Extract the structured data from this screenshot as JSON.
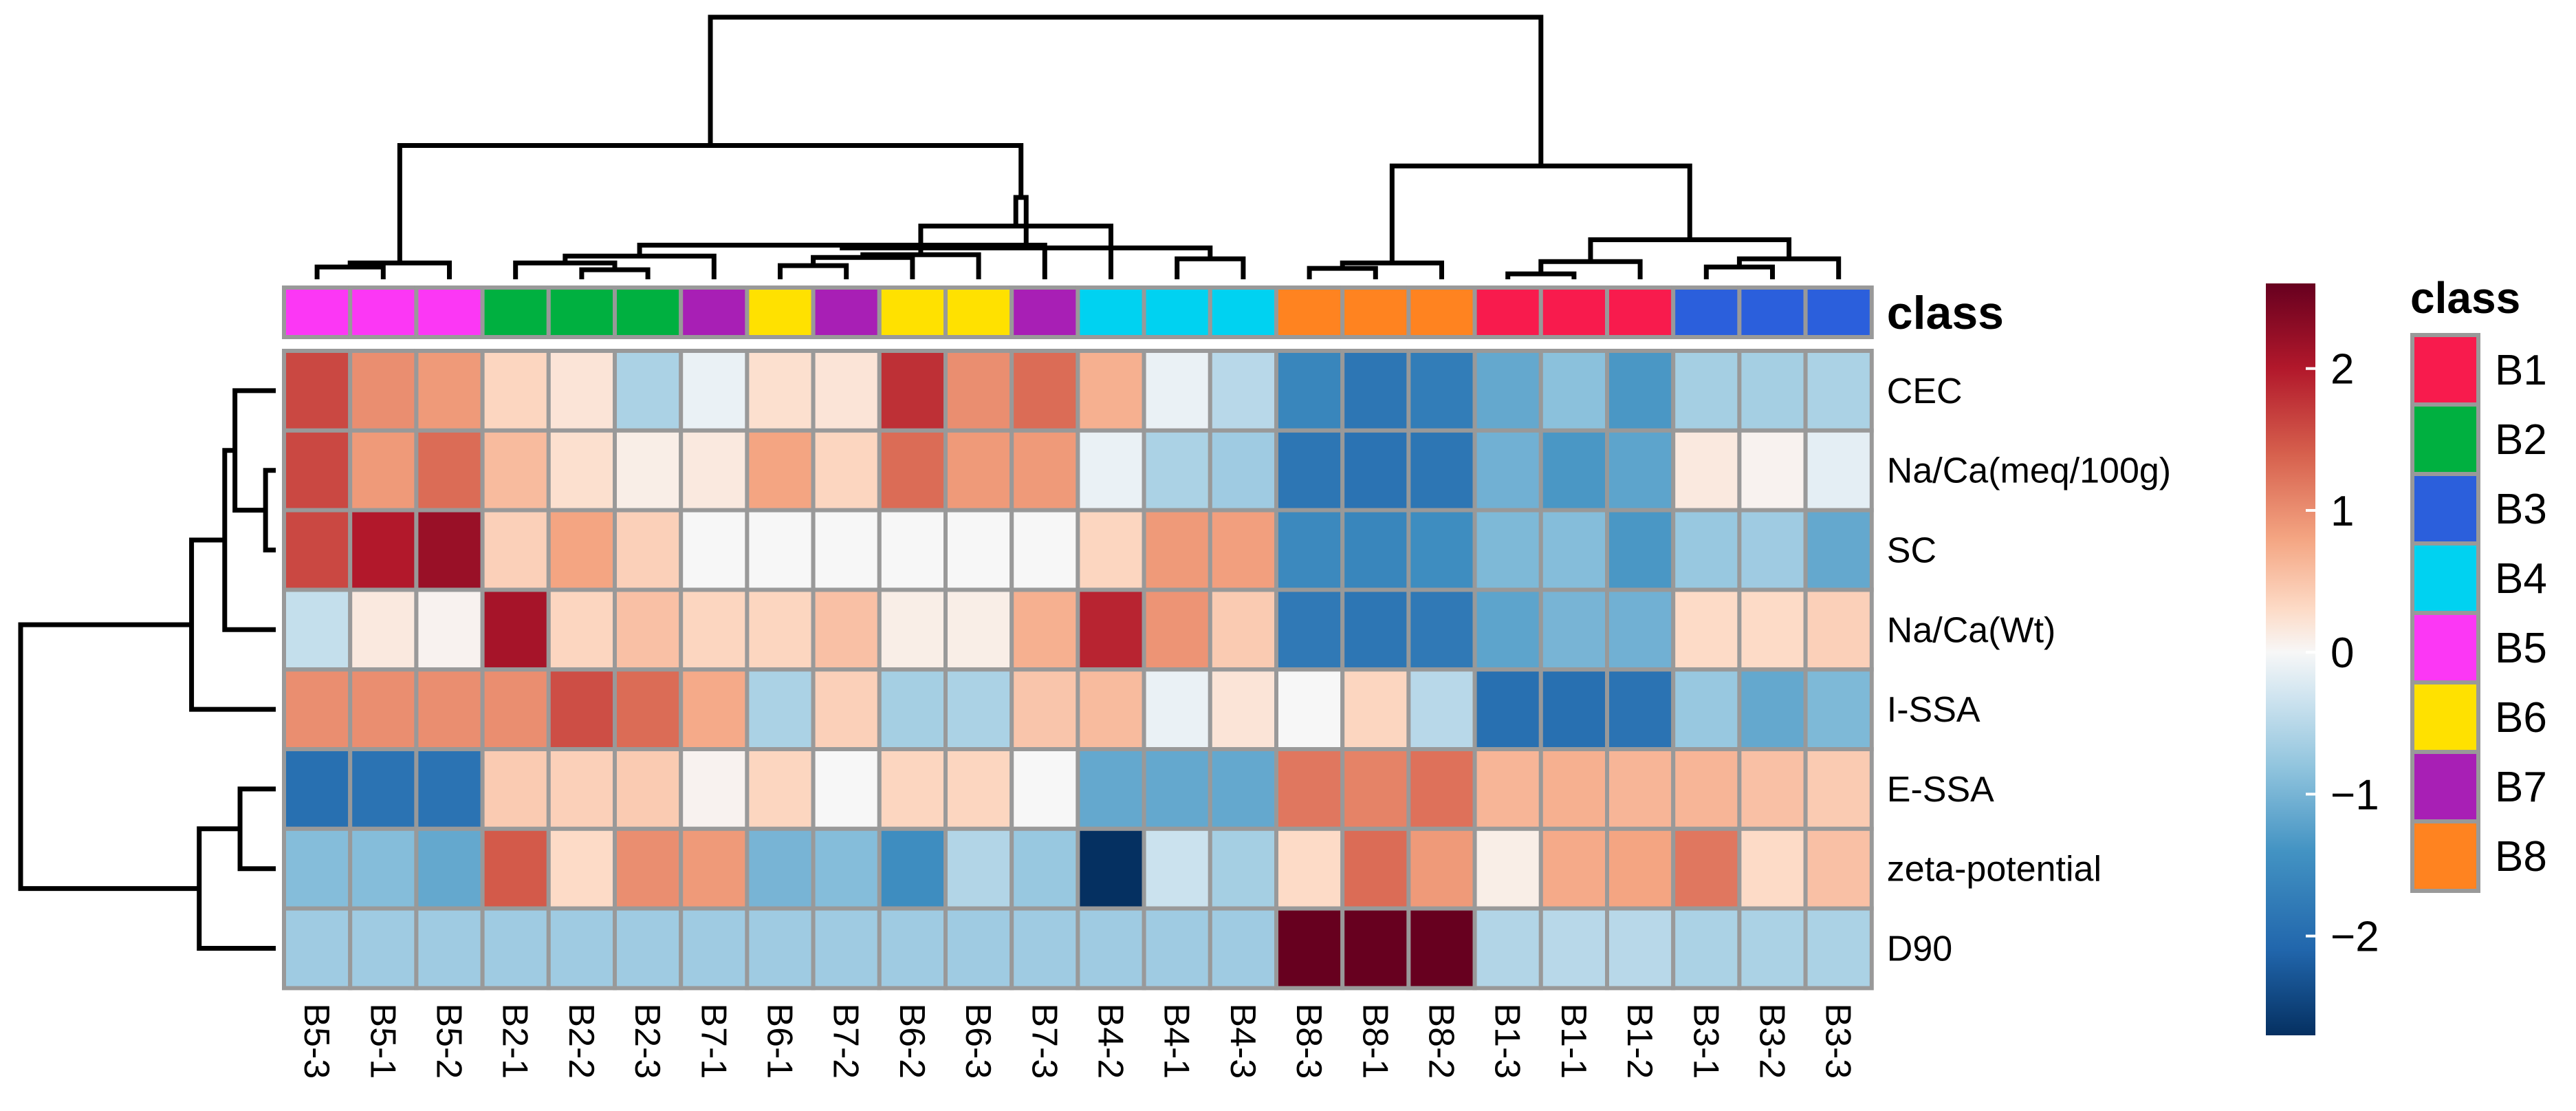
{
  "chart_data": {
    "type": "heatmap",
    "title": "",
    "columns": [
      "B5-3",
      "B5-1",
      "B5-2",
      "B2-1",
      "B2-2",
      "B2-3",
      "B7-1",
      "B6-1",
      "B7-2",
      "B6-2",
      "B6-3",
      "B7-3",
      "B4-2",
      "B4-1",
      "B4-3",
      "B8-3",
      "B8-1",
      "B8-2",
      "B1-3",
      "B1-1",
      "B1-2",
      "B3-1",
      "B3-2",
      "B3-3"
    ],
    "column_class": [
      "B5",
      "B5",
      "B5",
      "B2",
      "B2",
      "B2",
      "B7",
      "B6",
      "B7",
      "B6",
      "B6",
      "B7",
      "B4",
      "B4",
      "B4",
      "B8",
      "B8",
      "B8",
      "B1",
      "B1",
      "B1",
      "B3",
      "B3",
      "B3"
    ],
    "rows": [
      "CEC",
      "Na/Ca(meq/100g)",
      "SC",
      "Na/Ca(Wt)",
      "I-SSA",
      "E-SSA",
      "zeta-potential",
      "D90"
    ],
    "values": [
      [
        1.6,
        1.0,
        0.9,
        0.35,
        0.2,
        -0.6,
        -0.1,
        0.25,
        0.2,
        1.8,
        1.0,
        1.3,
        0.7,
        -0.1,
        -0.5,
        -1.6,
        -1.85,
        -1.75,
        -1.15,
        -0.85,
        -1.35,
        -0.65,
        -0.65,
        -0.6
      ],
      [
        1.6,
        0.9,
        1.3,
        0.6,
        0.25,
        0.1,
        0.15,
        0.8,
        0.35,
        1.3,
        0.9,
        0.9,
        -0.1,
        -0.6,
        -0.7,
        -1.85,
        -1.9,
        -1.85,
        -1.05,
        -1.35,
        -1.2,
        0.15,
        0.05,
        -0.15
      ],
      [
        1.6,
        2.0,
        2.2,
        0.4,
        0.8,
        0.4,
        0.0,
        0.0,
        0.0,
        0.0,
        0.0,
        0.0,
        0.35,
        0.9,
        0.85,
        -1.55,
        -1.6,
        -1.5,
        -0.95,
        -0.9,
        -1.35,
        -0.75,
        -0.7,
        -1.15
      ],
      [
        -0.4,
        0.15,
        0.05,
        2.1,
        0.35,
        0.55,
        0.35,
        0.35,
        0.55,
        0.1,
        0.1,
        0.7,
        1.9,
        0.95,
        0.45,
        -1.8,
        -1.85,
        -1.8,
        -1.2,
        -1.0,
        -1.05,
        0.3,
        0.3,
        0.4
      ],
      [
        1.0,
        1.0,
        1.0,
        1.0,
        1.55,
        1.3,
        0.75,
        -0.6,
        0.4,
        -0.65,
        -0.6,
        0.5,
        0.6,
        -0.1,
        0.2,
        0.0,
        0.35,
        -0.5,
        -1.95,
        -1.95,
        -1.9,
        -0.75,
        -1.15,
        -0.95
      ],
      [
        -1.95,
        -1.9,
        -1.9,
        0.45,
        0.4,
        0.45,
        0.05,
        0.35,
        0.0,
        0.35,
        0.35,
        0.0,
        -1.15,
        -1.15,
        -1.15,
        1.2,
        1.1,
        1.25,
        0.65,
        0.7,
        0.65,
        0.65,
        0.55,
        0.45
      ],
      [
        -0.9,
        -0.9,
        -1.15,
        1.45,
        0.3,
        1.0,
        0.9,
        -1.0,
        -0.9,
        -1.5,
        -0.55,
        -0.75,
        -2.7,
        -0.35,
        -0.65,
        0.3,
        1.3,
        0.9,
        0.1,
        0.75,
        0.8,
        1.2,
        0.3,
        0.55
      ],
      [
        -0.7,
        -0.7,
        -0.7,
        -0.7,
        -0.7,
        -0.7,
        -0.7,
        -0.7,
        -0.7,
        -0.7,
        -0.7,
        -0.7,
        -0.7,
        -0.7,
        -0.7,
        2.6,
        2.6,
        2.6,
        -0.55,
        -0.5,
        -0.5,
        -0.6,
        -0.6,
        -0.6
      ]
    ],
    "color_scale": {
      "domain": [
        -2.7,
        2.6
      ],
      "stops": [
        [
          -2.7,
          "#053061"
        ],
        [
          -2.1,
          "#2166ac"
        ],
        [
          -1.4,
          "#4393c3"
        ],
        [
          -0.8,
          "#92c5de"
        ],
        [
          -0.3,
          "#d1e5f0"
        ],
        [
          0.0,
          "#f7f7f7"
        ],
        [
          0.3,
          "#fddbc7"
        ],
        [
          0.8,
          "#f4a582"
        ],
        [
          1.4,
          "#d6604d"
        ],
        [
          2.0,
          "#b2182b"
        ],
        [
          2.6,
          "#67001f"
        ]
      ],
      "ticks": [
        2,
        1,
        0,
        -1,
        -2
      ],
      "tick_labels": [
        "2",
        "1",
        "0",
        "−1",
        "−2"
      ]
    },
    "annotation": {
      "title": "class",
      "legend_title": "class",
      "classes": [
        "B1",
        "B2",
        "B3",
        "B4",
        "B5",
        "B6",
        "B7",
        "B8"
      ],
      "colors": {
        "B1": "#f81b4d",
        "B2": "#00b040",
        "B3": "#2b5fdc",
        "B4": "#00d2f1",
        "B5": "#fc37f5",
        "B6": "#ffe100",
        "B7": "#a81fb5",
        "B8": "#ff8320"
      }
    },
    "col_dendrogram": [
      [
        0,
        1
      ],
      [
        -1,
        2
      ],
      [
        4,
        5
      ],
      [
        3,
        -3
      ],
      [
        -4,
        6
      ],
      [
        7,
        8
      ],
      [
        -6,
        9
      ],
      [
        10,
        -7
      ],
      [
        11,
        -5
      ],
      [
        -8,
        12
      ],
      [
        13,
        14
      ],
      [
        -11,
        -9
      ],
      [
        -12,
        -10
      ],
      [
        15,
        16
      ],
      [
        -14,
        17
      ],
      [
        18,
        19
      ],
      [
        -16,
        20
      ],
      [
        21,
        22
      ],
      [
        -18,
        23
      ],
      [
        -17,
        -19
      ],
      [
        -15,
        -20
      ],
      [
        -2,
        -13
      ],
      [
        -22,
        -21
      ]
    ],
    "col_dendrogram_heights": [
      0.09,
      0.12,
      0.07,
      0.12,
      0.17,
      0.1,
      0.16,
      0.18,
      0.25,
      0.39,
      0.15,
      0.23,
      0.6,
      0.08,
      0.12,
      0.04,
      0.13,
      0.09,
      0.15,
      0.29,
      0.83,
      0.98,
      1.92
    ],
    "row_dendrogram": [
      [
        1,
        2
      ],
      [
        -1,
        0
      ],
      [
        -2,
        3
      ],
      [
        -3,
        4
      ],
      [
        5,
        6
      ],
      [
        -5,
        7
      ],
      [
        -4,
        -6
      ]
    ],
    "row_dendrogram_heights": [
      0.04,
      0.16,
      0.2,
      0.33,
      0.14,
      0.3,
      1.0
    ]
  }
}
